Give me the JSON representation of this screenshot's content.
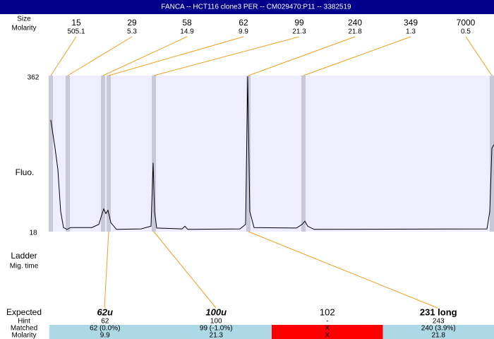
{
  "header": {
    "title": "FANCA -- HCT116 clone3 PER -- CM029470:P11 -- 3382519"
  },
  "ladder": {
    "size_label": "Size",
    "molarity_label": "Molarity",
    "sizes": [
      "15",
      "29",
      "58",
      "62",
      "99",
      "240",
      "349",
      "7000"
    ],
    "molarity": [
      "505.1",
      "5.3",
      "14.9",
      "9.9",
      "21.3",
      "21.8",
      "1.3",
      "0.5"
    ],
    "ladder_label": "Ladder",
    "time_label": "Mig. time"
  },
  "chart_data": {
    "type": "line",
    "y_label": "Fluo.",
    "ylim": [
      18,
      362
    ],
    "yticks": [
      18,
      362
    ],
    "xlim": [
      0,
      630
    ],
    "x": [
      2,
      8,
      12,
      16,
      20,
      25,
      30,
      60,
      70,
      74,
      77,
      80,
      83,
      87,
      95,
      130,
      144,
      147,
      149,
      152,
      188,
      192,
      196,
      270,
      278,
      281,
      284,
      290,
      350,
      358,
      362,
      366,
      375,
      620,
      624,
      627,
      630
    ],
    "series": [
      {
        "color": "#000000",
        "values": [
          264,
          202,
          155,
          62,
          27,
          23,
          27,
          27,
          34,
          54,
          68,
          58,
          65,
          38,
          23,
          24,
          30,
          170,
          62,
          26,
          24,
          30,
          23,
          24,
          34,
          360,
          62,
          27,
          26,
          34,
          41,
          30,
          23,
          24,
          62,
          202,
          210
        ]
      }
    ]
  },
  "table": {
    "row_labels": [
      "Expected",
      "Hint",
      "Matched",
      "Molarity"
    ],
    "columns": [
      {
        "expected": "62u",
        "hint": "62",
        "matched": "62 (0.0%)",
        "molarity": "9.9",
        "color": "#add8e6"
      },
      {
        "expected": "100u",
        "hint": "100",
        "matched": "99 (-1.0%)",
        "molarity": "21.3",
        "color": "#add8e6"
      },
      {
        "expected": "102",
        "hint": "-",
        "matched": "X",
        "molarity": "X",
        "color": "#ff0000"
      },
      {
        "expected": "231 long",
        "hint": "243",
        "matched": "240 (3.9%)",
        "molarity": "21.8",
        "color": "#add8e6"
      }
    ]
  }
}
